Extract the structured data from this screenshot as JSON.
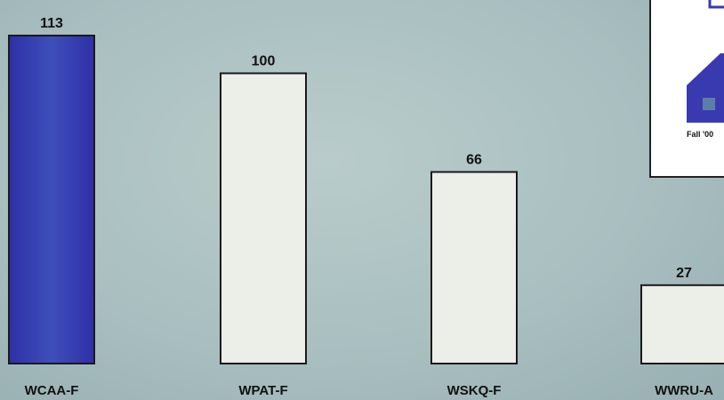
{
  "chart_data": {
    "type": "bar",
    "categories": [
      "WCAA-F",
      "WPAT-F",
      "WSKQ-F",
      "WWRU-A"
    ],
    "values": [
      113,
      100,
      66,
      27
    ],
    "data_labels": [
      "113",
      "100",
      "66",
      "27"
    ],
    "colors": [
      "#3a3ab0",
      "#eceee8",
      "#eceee8",
      "#eceee8"
    ],
    "title": "",
    "xlabel": "",
    "ylabel": "",
    "ylim": [
      0,
      113
    ],
    "grid": false,
    "legend": "none"
  },
  "inset": {
    "label": "Fall '00"
  }
}
